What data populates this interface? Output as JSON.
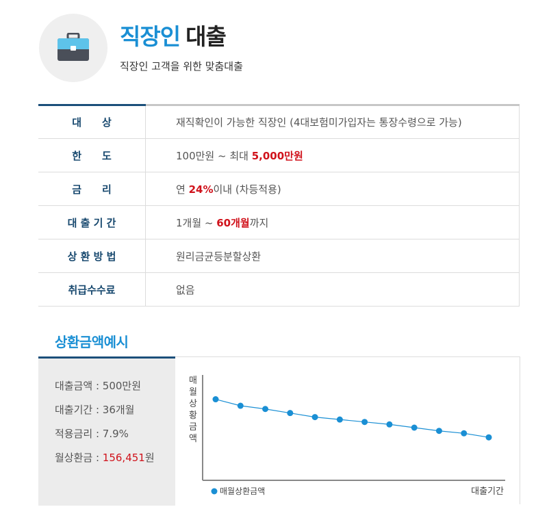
{
  "header": {
    "icon": "briefcase-icon",
    "title_part1": "직장인",
    "title_part2": "대출",
    "subtitle": "직장인 고객을 위한 맞춤대출"
  },
  "info_rows": [
    {
      "label": "대　　상",
      "value_pre": "재직확인이 가능한 직장인 (4대보험미가입자는 통장수령으로 가능)",
      "value_hl": "",
      "value_post": ""
    },
    {
      "label": "한　　도",
      "value_pre": "100만원 ~ 최대 ",
      "value_hl": "5,000만원",
      "value_post": ""
    },
    {
      "label": "금　　리",
      "value_pre": "연 ",
      "value_hl": "24%",
      "value_post": "이내 (차등적용)"
    },
    {
      "label": "대 출 기 간",
      "value_pre": "1개월 ~ ",
      "value_hl": "60개월",
      "value_post": "까지"
    },
    {
      "label": "상 환 방 법",
      "value_pre": "원리금균등분할상환",
      "value_hl": "",
      "value_post": ""
    },
    {
      "label": "취급수수료",
      "value_pre": "없음",
      "value_hl": "",
      "value_post": ""
    }
  ],
  "example": {
    "section_title": "상환금액예시",
    "loan_amount": "대출금액 : 500만원",
    "loan_period": "대출기간 : 36개월",
    "rate": "적용금리 : 7.9%",
    "monthly_label": "월상환금 : ",
    "monthly_value": "156,451",
    "monthly_unit": "원"
  },
  "chart_data": {
    "type": "line",
    "ylabel": "매월상황금액",
    "xlabel": "대출기간",
    "legend": "매월상환금액",
    "legend_position": "bottom-left",
    "grid": false,
    "y": [
      100,
      92,
      88,
      83,
      78,
      75,
      72,
      69,
      65,
      61,
      58,
      53
    ],
    "ylim": [
      0,
      130
    ],
    "series_color": "#1a8fd4"
  },
  "colors": {
    "accent_blue": "#1a8fd4",
    "navy": "#1b4f7a",
    "highlight_red": "#d0121b"
  }
}
